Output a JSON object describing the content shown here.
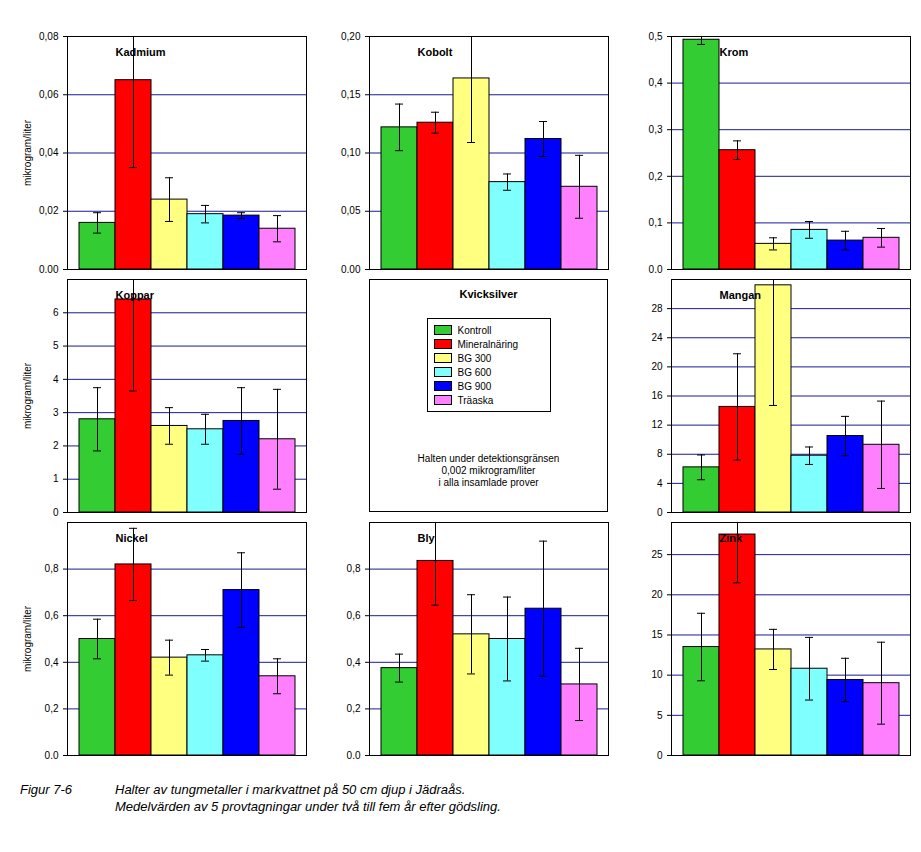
{
  "chart_data": [
    {
      "type": "bar",
      "title": "Kadmium",
      "ylabel": "mikrogram/liter",
      "categories": [
        "Kontroll",
        "Mineralnäring",
        "BG 300",
        "BG 600",
        "BG 900",
        "Träaska"
      ],
      "colors": [
        "#33cc33",
        "#ff0000",
        "#ffff80",
        "#80ffff",
        "#0000ff",
        "#ff80ff"
      ],
      "values": [
        0.016,
        0.065,
        0.024,
        0.019,
        0.0185,
        0.014
      ],
      "errors": [
        0.0035,
        0.03,
        0.0075,
        0.003,
        0.001,
        0.0045
      ],
      "ylim": [
        0,
        0.08
      ],
      "yticks": [
        {
          "value": 0,
          "label": "0,00"
        },
        {
          "value": 0.02,
          "label": "0,02"
        },
        {
          "value": 0.04,
          "label": "0,04"
        },
        {
          "value": 0.06,
          "label": "0,06"
        },
        {
          "value": 0.08,
          "label": "0,08"
        }
      ],
      "grid": true,
      "tick_labels": "y"
    },
    {
      "type": "bar",
      "title": "Kobolt",
      "categories": [
        "Kontroll",
        "Mineralnäring",
        "BG 300",
        "BG 600",
        "BG 900",
        "Träaska"
      ],
      "colors": [
        "#33cc33",
        "#ff0000",
        "#ffff80",
        "#80ffff",
        "#0000ff",
        "#ff80ff"
      ],
      "values": [
        0.122,
        0.126,
        0.164,
        0.075,
        0.112,
        0.071
      ],
      "errors": [
        0.02,
        0.009,
        0.055,
        0.007,
        0.015,
        0.027
      ],
      "ylim": [
        0,
        0.2
      ],
      "yticks": [
        {
          "value": 0,
          "label": "0,00"
        },
        {
          "value": 0.05,
          "label": "0,05"
        },
        {
          "value": 0.1,
          "label": "0,10"
        },
        {
          "value": 0.15,
          "label": "0,15"
        },
        {
          "value": 0.2,
          "label": "0,20"
        }
      ],
      "grid": true,
      "tick_labels": "y"
    },
    {
      "type": "bar",
      "title": "Krom",
      "categories": [
        "Kontroll",
        "Mineralnäring",
        "BG 300",
        "BG 600",
        "BG 900",
        "Träaska"
      ],
      "colors": [
        "#33cc33",
        "#ff0000",
        "#ffff80",
        "#80ffff",
        "#0000ff",
        "#ff80ff"
      ],
      "values": [
        0.493,
        0.256,
        0.055,
        0.085,
        0.062,
        0.068
      ],
      "errors": [
        0.01,
        0.02,
        0.013,
        0.018,
        0.02,
        0.02
      ],
      "ylim": [
        0,
        0.5
      ],
      "yticks": [
        {
          "value": 0,
          "label": "0,0"
        },
        {
          "value": 0.1,
          "label": "0,1"
        },
        {
          "value": 0.2,
          "label": "0,2"
        },
        {
          "value": 0.3,
          "label": "0,3"
        },
        {
          "value": 0.4,
          "label": "0,4"
        },
        {
          "value": 0.5,
          "label": "0,5"
        }
      ],
      "grid": true,
      "tick_labels": "y"
    },
    {
      "type": "bar",
      "title": "Koppar",
      "ylabel": "mikrogram/liter",
      "categories": [
        "Kontroll",
        "Mineralnäring",
        "BG 300",
        "BG 600",
        "BG 900",
        "Träaska"
      ],
      "colors": [
        "#33cc33",
        "#ff0000",
        "#ffff80",
        "#80ffff",
        "#0000ff",
        "#ff80ff"
      ],
      "values": [
        2.8,
        6.4,
        2.6,
        2.5,
        2.75,
        2.2
      ],
      "errors": [
        0.95,
        2.75,
        0.55,
        0.45,
        1.0,
        1.5
      ],
      "ylim": [
        0,
        7
      ],
      "yticks": [
        0,
        1,
        2,
        3,
        4,
        5,
        6
      ],
      "grid": true,
      "tick_labels": "y"
    },
    {
      "type": "note",
      "title": "Kvicksilver",
      "categories": [
        "Kontroll",
        "Mineralnäring",
        "BG 300",
        "BG 600",
        "BG 900",
        "Träaska"
      ],
      "colors": [
        "#33cc33",
        "#ff0000",
        "#ffff80",
        "#80ffff",
        "#0000ff",
        "#ff80ff"
      ],
      "legend": "center",
      "annotation": [
        "Halten under detektionsgränsen",
        "0,002 mikrogram/liter",
        "i alla insamlade prover"
      ]
    },
    {
      "type": "bar",
      "title": "Mangan",
      "categories": [
        "Kontroll",
        "Mineralnäring",
        "BG 300",
        "BG 600",
        "BG 900",
        "Träaska"
      ],
      "colors": [
        "#33cc33",
        "#ff0000",
        "#ffff80",
        "#80ffff",
        "#0000ff",
        "#ff80ff"
      ],
      "values": [
        6.2,
        14.5,
        31.2,
        7.8,
        10.5,
        9.3
      ],
      "errors": [
        1.7,
        7.3,
        16.5,
        1.2,
        2.7,
        6.0
      ],
      "ylim": [
        0,
        32
      ],
      "yticks": [
        0,
        4,
        8,
        12,
        16,
        20,
        24,
        28
      ],
      "grid": true,
      "tick_labels": "y"
    },
    {
      "type": "bar",
      "title": "Nickel",
      "ylabel": "mikrogram/liter",
      "categories": [
        "Kontroll",
        "Mineralnäring",
        "BG 300",
        "BG 600",
        "BG 900",
        "Träaska"
      ],
      "colors": [
        "#33cc33",
        "#ff0000",
        "#ffff80",
        "#80ffff",
        "#0000ff",
        "#ff80ff"
      ],
      "values": [
        0.5,
        0.82,
        0.42,
        0.43,
        0.71,
        0.34
      ],
      "errors": [
        0.085,
        0.155,
        0.075,
        0.025,
        0.16,
        0.075
      ],
      "ylim": [
        0,
        1
      ],
      "yticks": [
        {
          "value": 0,
          "label": "0,0"
        },
        {
          "value": 0.2,
          "label": "0,2"
        },
        {
          "value": 0.4,
          "label": "0,4"
        },
        {
          "value": 0.6,
          "label": "0,6"
        },
        {
          "value": 0.8,
          "label": "0,8"
        }
      ],
      "grid": true,
      "tick_labels": "y"
    },
    {
      "type": "bar",
      "title": "Bly",
      "categories": [
        "Kontroll",
        "Mineralnäring",
        "BG 300",
        "BG 600",
        "BG 900",
        "Träaska"
      ],
      "colors": [
        "#33cc33",
        "#ff0000",
        "#ffff80",
        "#80ffff",
        "#0000ff",
        "#ff80ff"
      ],
      "values": [
        0.375,
        0.835,
        0.52,
        0.5,
        0.63,
        0.305
      ],
      "errors": [
        0.06,
        0.19,
        0.17,
        0.18,
        0.29,
        0.155
      ],
      "ylim": [
        0,
        1
      ],
      "yticks": [
        {
          "value": 0,
          "label": "0,0"
        },
        {
          "value": 0.2,
          "label": "0,2"
        },
        {
          "value": 0.4,
          "label": "0,4"
        },
        {
          "value": 0.6,
          "label": "0,6"
        },
        {
          "value": 0.8,
          "label": "0,8"
        }
      ],
      "grid": true,
      "tick_labels": "y"
    },
    {
      "type": "bar",
      "title": "Zink",
      "categories": [
        "Kontroll",
        "Mineralnäring",
        "BG 300",
        "BG 600",
        "BG 900",
        "Träaska"
      ],
      "colors": [
        "#33cc33",
        "#ff0000",
        "#ffff80",
        "#80ffff",
        "#0000ff",
        "#ff80ff"
      ],
      "values": [
        13.5,
        27.5,
        13.2,
        10.8,
        9.4,
        9.0
      ],
      "errors": [
        4.2,
        6.0,
        2.5,
        3.9,
        2.7,
        5.1
      ],
      "ylim": [
        0,
        29
      ],
      "yticks": [
        0,
        5,
        10,
        15,
        20,
        25
      ],
      "grid": true,
      "tick_labels": "y"
    }
  ],
  "caption": {
    "label": "Figur 7-6",
    "lines": [
      "Halter av tungmetaller i markvattnet på 50 cm djup i Jädraås.",
      "Medelvärden av 5 provtagningar under två till fem år efter gödsling."
    ]
  }
}
